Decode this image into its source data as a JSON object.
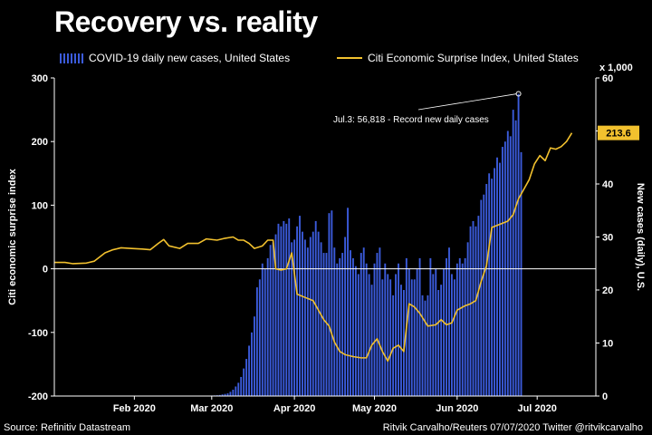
{
  "chart_data": {
    "type": "bar+line",
    "title": "Recovery vs. reality",
    "left_axis": {
      "label": "Citi economic surprise index",
      "ylim": [
        -200,
        300
      ],
      "ticks": [
        300,
        200,
        100,
        0,
        -100,
        -200
      ]
    },
    "right_axis": {
      "label": "New cases (daily), U.S.",
      "multiplier_label": "x 1,000",
      "ylim": [
        0,
        60
      ],
      "ticks": [
        60,
        50,
        40,
        30,
        20,
        10,
        0
      ]
    },
    "x_axis": {
      "start": "2020-01-02",
      "end": "2020-07-23",
      "tick_labels": [
        "Feb 2020",
        "Mar 2020",
        "Apr 2020",
        "May 2020",
        "Jun 2020",
        "Jul 2020"
      ],
      "tick_dates": [
        "2020-02-01",
        "2020-03-01",
        "2020-04-01",
        "2020-05-01",
        "2020-06-01",
        "2020-07-01"
      ]
    },
    "series": [
      {
        "name": "COVID-19 daily new cases, United States",
        "kind": "bar",
        "axis": "right",
        "unit": "thousands",
        "start_date": "2020-02-26",
        "values": [
          0.02,
          0.03,
          0.05,
          0.08,
          0.1,
          0.12,
          0.15,
          0.2,
          0.3,
          0.4,
          0.5,
          0.8,
          1.2,
          1.8,
          2.5,
          3.6,
          5.2,
          7,
          9.5,
          12,
          15,
          20.5,
          22,
          25,
          24,
          26,
          28.5,
          29,
          30.5,
          32.5,
          32,
          33,
          32.5,
          33.5,
          29,
          29.5,
          32,
          34,
          31,
          29.5,
          28,
          30,
          31,
          33,
          31,
          29,
          27,
          27,
          34.5,
          35,
          28,
          25,
          26,
          27,
          30,
          35.5,
          27.5,
          26,
          24.5,
          23,
          27,
          28,
          25,
          23,
          21,
          25,
          27,
          28,
          22,
          25,
          23,
          22,
          19,
          23,
          25,
          21,
          20,
          26,
          24,
          22,
          22,
          24,
          26,
          19,
          18,
          19,
          26,
          23,
          24,
          20,
          21,
          24,
          26,
          28,
          23,
          22,
          25,
          26,
          25,
          26,
          29,
          32,
          33,
          32,
          34,
          37,
          38,
          40,
          42,
          41,
          43,
          45,
          44,
          47,
          48,
          50,
          49,
          54,
          52,
          57,
          46
        ]
      },
      {
        "name": "Citi Economic Surprise Index, United States",
        "kind": "line",
        "axis": "left",
        "points": [
          [
            "2020-01-02",
            10
          ],
          [
            "2020-01-06",
            10
          ],
          [
            "2020-01-09",
            8
          ],
          [
            "2020-01-14",
            9
          ],
          [
            "2020-01-17",
            12
          ],
          [
            "2020-01-21",
            25
          ],
          [
            "2020-01-24",
            30
          ],
          [
            "2020-01-27",
            33
          ],
          [
            "2020-01-31",
            32
          ],
          [
            "2020-02-04",
            31
          ],
          [
            "2020-02-07",
            30
          ],
          [
            "2020-02-10",
            40
          ],
          [
            "2020-02-12",
            46
          ],
          [
            "2020-02-14",
            36
          ],
          [
            "2020-02-18",
            32
          ],
          [
            "2020-02-21",
            40
          ],
          [
            "2020-02-25",
            40
          ],
          [
            "2020-02-28",
            47
          ],
          [
            "2020-03-03",
            45
          ],
          [
            "2020-03-06",
            48
          ],
          [
            "2020-03-09",
            50
          ],
          [
            "2020-03-11",
            45
          ],
          [
            "2020-03-13",
            45
          ],
          [
            "2020-03-15",
            40
          ],
          [
            "2020-03-17",
            32
          ],
          [
            "2020-03-20",
            36
          ],
          [
            "2020-03-22",
            45
          ],
          [
            "2020-03-24",
            45
          ],
          [
            "2020-03-25",
            0
          ],
          [
            "2020-03-27",
            -2
          ],
          [
            "2020-03-29",
            0
          ],
          [
            "2020-03-31",
            25
          ],
          [
            "2020-04-02",
            -40
          ],
          [
            "2020-04-05",
            -45
          ],
          [
            "2020-04-08",
            -50
          ],
          [
            "2020-04-10",
            -65
          ],
          [
            "2020-04-12",
            -80
          ],
          [
            "2020-04-14",
            -90
          ],
          [
            "2020-04-16",
            -115
          ],
          [
            "2020-04-18",
            -130
          ],
          [
            "2020-04-20",
            -135
          ],
          [
            "2020-04-23",
            -138
          ],
          [
            "2020-04-26",
            -140
          ],
          [
            "2020-04-28",
            -140
          ],
          [
            "2020-04-30",
            -120
          ],
          [
            "2020-05-02",
            -110
          ],
          [
            "2020-05-04",
            -130
          ],
          [
            "2020-05-06",
            -145
          ],
          [
            "2020-05-08",
            -125
          ],
          [
            "2020-05-10",
            -120
          ],
          [
            "2020-05-12",
            -130
          ],
          [
            "2020-05-14",
            -55
          ],
          [
            "2020-05-16",
            -60
          ],
          [
            "2020-05-18",
            -70
          ],
          [
            "2020-05-21",
            -90
          ],
          [
            "2020-05-24",
            -88
          ],
          [
            "2020-05-26",
            -80
          ],
          [
            "2020-05-28",
            -88
          ],
          [
            "2020-05-30",
            -85
          ],
          [
            "2020-06-01",
            -65
          ],
          [
            "2020-06-04",
            -58
          ],
          [
            "2020-06-06",
            -55
          ],
          [
            "2020-06-08",
            -50
          ],
          [
            "2020-06-10",
            -20
          ],
          [
            "2020-06-12",
            5
          ],
          [
            "2020-06-14",
            65
          ],
          [
            "2020-06-17",
            70
          ],
          [
            "2020-06-20",
            75
          ],
          [
            "2020-06-22",
            85
          ],
          [
            "2020-06-24",
            110
          ],
          [
            "2020-06-26",
            125
          ],
          [
            "2020-06-28",
            140
          ],
          [
            "2020-06-30",
            165
          ],
          [
            "2020-07-02",
            178
          ],
          [
            "2020-07-04",
            170
          ],
          [
            "2020-07-06",
            190
          ],
          [
            "2020-07-08",
            188
          ],
          [
            "2020-07-10",
            192
          ],
          [
            "2020-07-12",
            200
          ],
          [
            "2020-07-14",
            213.6
          ]
        ]
      }
    ],
    "last_value_label": "213.6",
    "annotation": "Jul.3: 56,818 - Record new daily cases"
  },
  "footer": {
    "source": "Source: Refinitiv Datastream",
    "credit": "Ritvik Carvalho/Reuters 07/07/2020 Twitter @ritvikcarvalho"
  },
  "colors": {
    "bars": "#3b5bdb",
    "line": "#f2c12e",
    "background": "#000000"
  }
}
